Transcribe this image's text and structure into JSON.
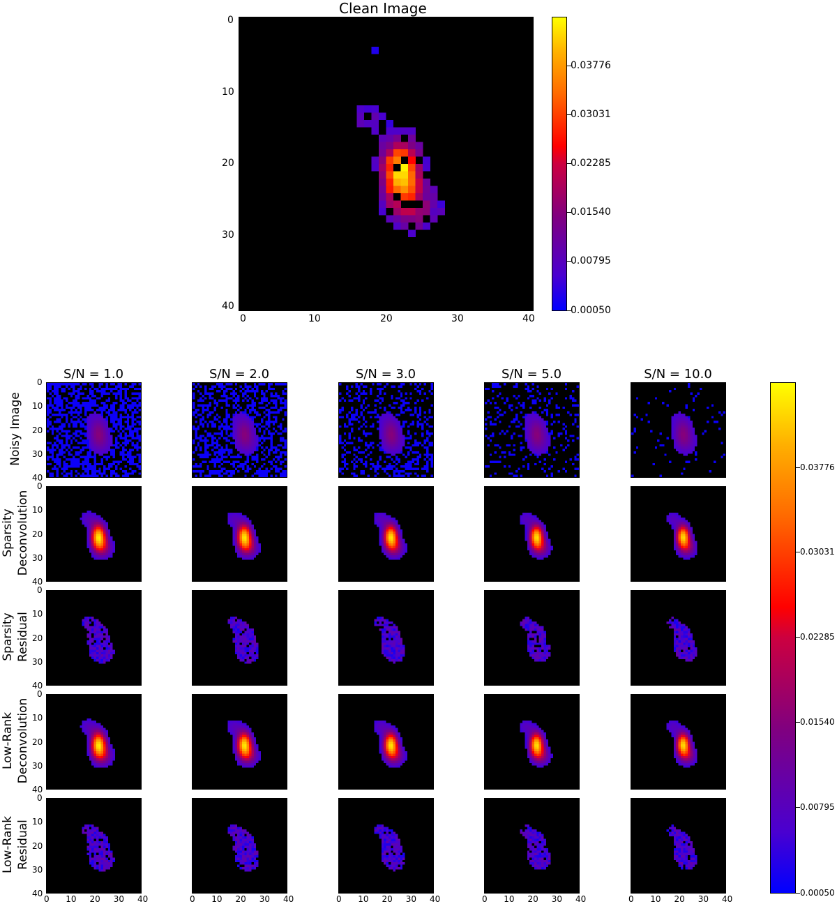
{
  "chart_data": {
    "type": "heatmap",
    "colormap": "gnuplot-like (blue-purple-red-orange-yellow)",
    "main": {
      "title": "Clean Image",
      "xticks": [
        "0",
        "10",
        "20",
        "30",
        "40"
      ],
      "yticks": [
        "0",
        "10",
        "20",
        "30",
        "40"
      ],
      "xlim": [
        0,
        40
      ],
      "ylim": [
        40,
        0
      ],
      "colorbar_ticks": [
        "0.00050",
        "0.00795",
        "0.01540",
        "0.02285",
        "0.03031",
        "0.03776"
      ],
      "colorbar_range": [
        0.0005,
        0.045
      ]
    },
    "grid": {
      "columns": [
        "S/N = 1.0",
        "S/N = 2.0",
        "S/N = 3.0",
        "S/N = 5.0",
        "S/N = 10.0"
      ],
      "rows": [
        [
          "Noisy Image"
        ],
        [
          "Sparsity",
          "Deconvolution"
        ],
        [
          "Sparsity",
          "Residual"
        ],
        [
          "Low-Rank",
          "Deconvolution"
        ],
        [
          "Low-Rank",
          "Residual"
        ]
      ],
      "xticks": [
        "0",
        "10",
        "20",
        "30",
        "40"
      ],
      "yticks": [
        "0",
        "10",
        "20",
        "30",
        "40"
      ],
      "colorbar_ticks": [
        "0.00050",
        "0.00795",
        "0.01540",
        "0.02285",
        "0.03031",
        "0.03776"
      ]
    }
  }
}
